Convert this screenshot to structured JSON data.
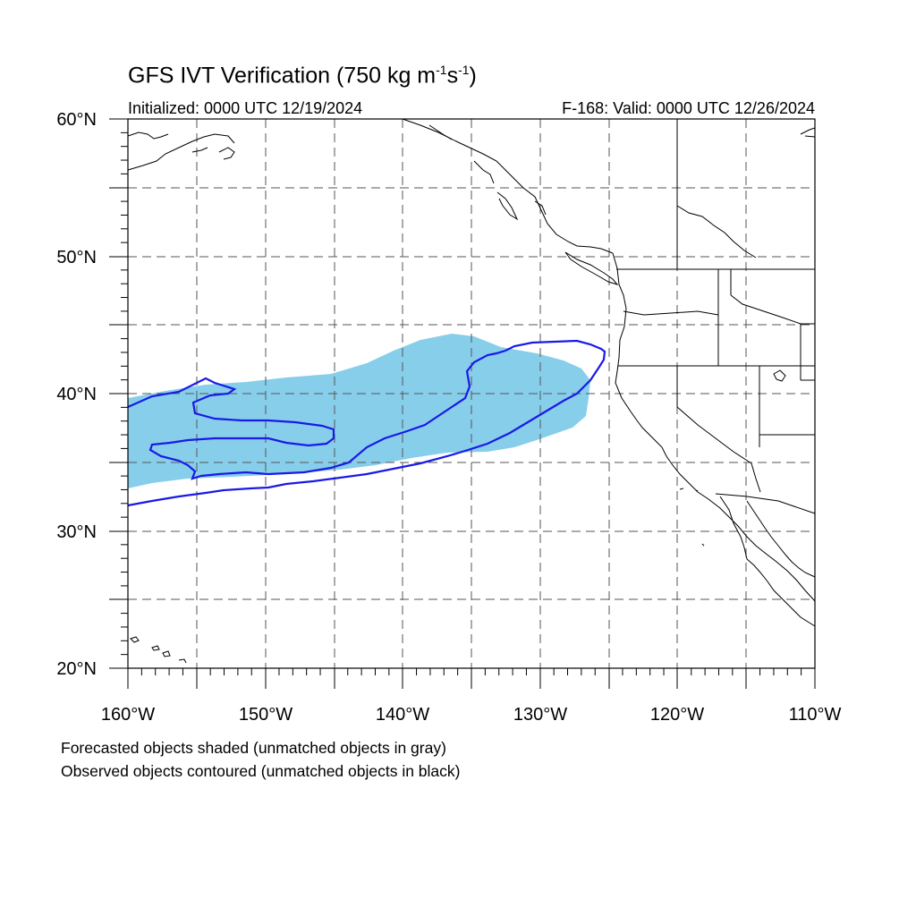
{
  "title": {
    "main": "GFS IVT Verification (750 kg m",
    "exp1": "-1",
    "mid": "s",
    "exp2": "-1",
    "close": ")"
  },
  "initialized": "Initialized: 0000 UTC 12/19/2024",
  "valid": "F-168: Valid: 0000 UTC 12/26/2024",
  "notes": [
    "Forecasted objects shaded (unmatched objects in gray)",
    "Observed objects contoured (unmatched objects in black)"
  ],
  "axes": {
    "lon_labels": [
      "160°W",
      "150°W",
      "140°W",
      "130°W",
      "120°W",
      "110°W"
    ],
    "lat_labels": [
      "60°N",
      "50°N",
      "40°N",
      "30°N",
      "20°N"
    ],
    "lon_range": [
      -160,
      -110
    ],
    "lat_range": [
      20,
      60
    ],
    "grid_interval_deg": 5
  },
  "colors": {
    "forecast_fill": "#87ceeb",
    "observed_contour": "#1a1ae6",
    "coastline": "#000000",
    "grid": "#555555"
  }
}
